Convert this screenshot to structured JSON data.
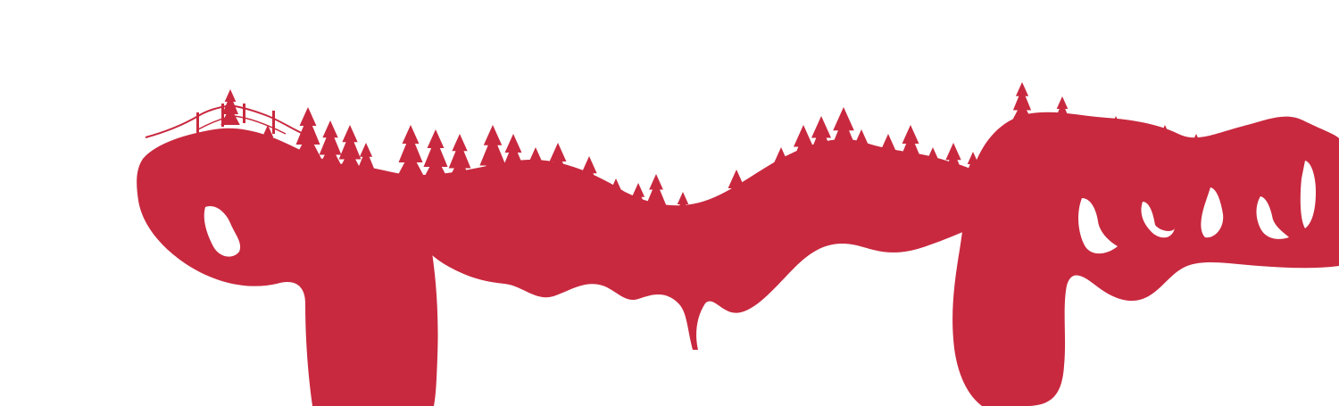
{
  "scene": {
    "fill_color": "#c8293f",
    "background_color": "#ffffff",
    "description_icon": "forest-silhouette-banner"
  }
}
